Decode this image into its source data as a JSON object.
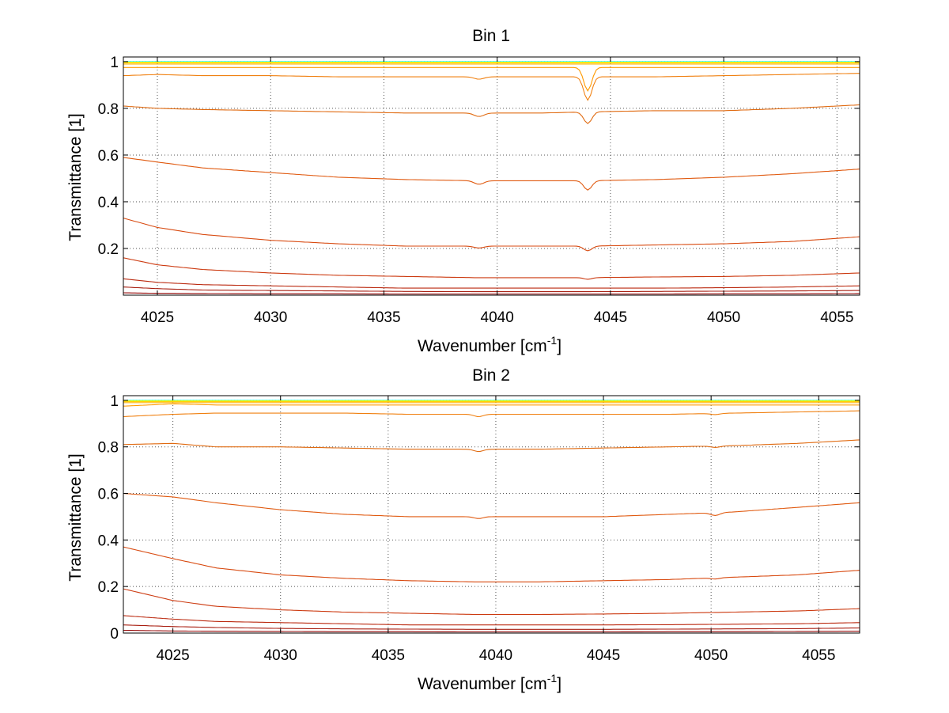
{
  "chart_data": [
    {
      "type": "line",
      "title": "Bin 1",
      "xlabel": "Wavenumber [cm",
      "xlabel_sup": "-1",
      "xlabel_end": "]",
      "ylabel": "Transmittance [1]",
      "xlim": [
        4023.5,
        4056
      ],
      "ylim": [
        0,
        1.02
      ],
      "xticks": [
        4025,
        4030,
        4035,
        4040,
        4045,
        4050,
        4055
      ],
      "yticks": [
        0.2,
        0.4,
        0.6,
        0.8,
        1
      ],
      "ytick_labels": [
        "0.2",
        "0.4",
        "0.6",
        "0.8",
        "1"
      ],
      "grid": true,
      "x": [
        4023.5,
        4025,
        4027,
        4030,
        4033,
        4036,
        4039,
        4042,
        4044,
        4047,
        4050,
        4053,
        4056
      ],
      "series": [
        {
          "color": "#00ffff",
          "values": [
            1.0,
            1.0,
            1.0,
            1.0,
            1.0,
            1.0,
            1.0,
            1.0,
            1.0,
            1.0,
            1.0,
            1.0,
            1.0
          ]
        },
        {
          "color": "#ffff00",
          "values": [
            0.998,
            0.998,
            0.998,
            0.998,
            0.998,
            0.998,
            0.998,
            0.998,
            0.998,
            0.998,
            0.998,
            0.998,
            0.998
          ]
        },
        {
          "color": "#ffd200",
          "values": [
            0.995,
            0.995,
            0.995,
            0.995,
            0.995,
            0.995,
            0.995,
            0.995,
            0.995,
            0.995,
            0.995,
            0.995,
            0.995
          ]
        },
        {
          "color": "#ffb400",
          "values": [
            0.99,
            0.99,
            0.99,
            0.99,
            0.99,
            0.99,
            0.99,
            0.99,
            0.99,
            0.99,
            0.99,
            0.99,
            0.99
          ]
        },
        {
          "color": "#ff9a00",
          "values": [
            0.975,
            0.975,
            0.975,
            0.975,
            0.975,
            0.975,
            0.975,
            0.975,
            0.975,
            0.975,
            0.975,
            0.975,
            0.975
          ]
        },
        {
          "color": "#f08010",
          "values": [
            0.94,
            0.945,
            0.94,
            0.94,
            0.935,
            0.935,
            0.935,
            0.935,
            0.935,
            0.935,
            0.94,
            0.945,
            0.95
          ]
        },
        {
          "color": "#e06a10",
          "values": [
            0.81,
            0.8,
            0.795,
            0.79,
            0.785,
            0.78,
            0.78,
            0.78,
            0.785,
            0.79,
            0.79,
            0.8,
            0.815
          ]
        },
        {
          "color": "#e05a10",
          "values": [
            0.59,
            0.57,
            0.545,
            0.525,
            0.505,
            0.495,
            0.49,
            0.49,
            0.49,
            0.495,
            0.505,
            0.52,
            0.54
          ]
        },
        {
          "color": "#d84a10",
          "values": [
            0.33,
            0.29,
            0.26,
            0.235,
            0.22,
            0.21,
            0.21,
            0.21,
            0.21,
            0.215,
            0.22,
            0.23,
            0.25
          ]
        },
        {
          "color": "#cc3a10",
          "values": [
            0.16,
            0.13,
            0.11,
            0.095,
            0.085,
            0.08,
            0.075,
            0.075,
            0.075,
            0.078,
            0.08,
            0.085,
            0.095
          ]
        },
        {
          "color": "#bb2a10",
          "values": [
            0.07,
            0.055,
            0.045,
            0.04,
            0.035,
            0.03,
            0.03,
            0.03,
            0.03,
            0.03,
            0.032,
            0.035,
            0.04
          ]
        },
        {
          "color": "#a81e10",
          "values": [
            0.035,
            0.028,
            0.022,
            0.02,
            0.018,
            0.016,
            0.015,
            0.015,
            0.015,
            0.016,
            0.017,
            0.018,
            0.02
          ]
        },
        {
          "color": "#960c0c",
          "values": [
            0.01,
            0.008,
            0.007,
            0.006,
            0.006,
            0.005,
            0.005,
            0.005,
            0.005,
            0.005,
            0.006,
            0.006,
            0.007
          ]
        }
      ],
      "dips": [
        {
          "x": 4044,
          "width": 0.25,
          "depth": [
            0,
            0,
            0,
            0,
            0.1,
            0.1,
            0.05,
            0.04,
            0.02,
            0.007,
            0,
            0,
            0
          ]
        },
        {
          "x": 4039.2,
          "width": 0.3,
          "depth": [
            0,
            0,
            0,
            0,
            0,
            0.01,
            0.015,
            0.015,
            0.008,
            0,
            0,
            0,
            0
          ]
        }
      ]
    },
    {
      "type": "line",
      "title": "Bin 2",
      "xlabel": "Wavenumber [cm",
      "xlabel_sup": "-1",
      "xlabel_end": "]",
      "ylabel": "Transmittance [1]",
      "xlim": [
        4022.7,
        4056.9
      ],
      "ylim": [
        0,
        1.02
      ],
      "xticks": [
        4025,
        4030,
        4035,
        4040,
        4045,
        4050,
        4055
      ],
      "yticks": [
        0,
        0.2,
        0.4,
        0.6,
        0.8,
        1
      ],
      "ytick_labels": [
        "0",
        "0.2",
        "0.4",
        "0.6",
        "0.8",
        "1"
      ],
      "grid": true,
      "x": [
        4022.7,
        4025,
        4027,
        4030,
        4033,
        4036,
        4039,
        4042,
        4045,
        4048,
        4051,
        4054,
        4056.9
      ],
      "series": [
        {
          "color": "#00ffff",
          "values": [
            1.0,
            1.0,
            1.0,
            1.0,
            1.0,
            1.0,
            1.0,
            1.0,
            1.0,
            1.0,
            1.0,
            1.0,
            1.0
          ]
        },
        {
          "color": "#ffff00",
          "values": [
            0.998,
            0.998,
            0.998,
            0.998,
            0.998,
            0.998,
            0.998,
            0.998,
            0.998,
            0.998,
            0.998,
            0.998,
            0.998
          ]
        },
        {
          "color": "#ffd200",
          "values": [
            0.995,
            0.995,
            0.995,
            0.995,
            0.995,
            0.995,
            0.995,
            0.995,
            0.995,
            0.995,
            0.995,
            0.995,
            0.995
          ]
        },
        {
          "color": "#ffb400",
          "values": [
            0.99,
            0.99,
            0.99,
            0.99,
            0.99,
            0.99,
            0.99,
            0.99,
            0.99,
            0.99,
            0.99,
            0.99,
            0.99
          ]
        },
        {
          "color": "#ff9a00",
          "values": [
            0.975,
            0.985,
            0.98,
            0.98,
            0.98,
            0.98,
            0.98,
            0.98,
            0.98,
            0.98,
            0.98,
            0.98,
            0.98
          ]
        },
        {
          "color": "#f08010",
          "values": [
            0.93,
            0.94,
            0.945,
            0.945,
            0.945,
            0.94,
            0.94,
            0.94,
            0.94,
            0.94,
            0.945,
            0.95,
            0.955
          ]
        },
        {
          "color": "#e06a10",
          "values": [
            0.81,
            0.815,
            0.8,
            0.8,
            0.795,
            0.79,
            0.79,
            0.79,
            0.795,
            0.8,
            0.805,
            0.815,
            0.83
          ]
        },
        {
          "color": "#e05a10",
          "values": [
            0.6,
            0.585,
            0.56,
            0.53,
            0.51,
            0.5,
            0.5,
            0.5,
            0.5,
            0.51,
            0.52,
            0.54,
            0.56
          ]
        },
        {
          "color": "#d84a10",
          "values": [
            0.37,
            0.32,
            0.28,
            0.25,
            0.235,
            0.225,
            0.22,
            0.22,
            0.225,
            0.23,
            0.24,
            0.25,
            0.27
          ]
        },
        {
          "color": "#cc3a10",
          "values": [
            0.19,
            0.14,
            0.115,
            0.1,
            0.09,
            0.085,
            0.08,
            0.08,
            0.082,
            0.085,
            0.09,
            0.095,
            0.105
          ]
        },
        {
          "color": "#bb2a10",
          "values": [
            0.075,
            0.06,
            0.05,
            0.045,
            0.04,
            0.035,
            0.035,
            0.035,
            0.035,
            0.036,
            0.038,
            0.04,
            0.045
          ]
        },
        {
          "color": "#a81e10",
          "values": [
            0.035,
            0.028,
            0.024,
            0.02,
            0.018,
            0.017,
            0.016,
            0.016,
            0.016,
            0.017,
            0.018,
            0.019,
            0.022
          ]
        },
        {
          "color": "#960c0c",
          "values": [
            0.012,
            0.009,
            0.008,
            0.007,
            0.006,
            0.006,
            0.005,
            0.005,
            0.005,
            0.006,
            0.006,
            0.007,
            0.008
          ]
        }
      ],
      "dips": [
        {
          "x": 4039.2,
          "width": 0.3,
          "depth": [
            0,
            0,
            0,
            0,
            0,
            0.01,
            0.01,
            0.008,
            0,
            0,
            0,
            0,
            0
          ]
        },
        {
          "x": 4050.2,
          "width": 0.3,
          "depth": [
            0,
            0,
            0,
            0,
            0,
            0.005,
            0.006,
            0.012,
            0.005,
            0,
            0,
            0,
            0
          ]
        }
      ]
    }
  ]
}
